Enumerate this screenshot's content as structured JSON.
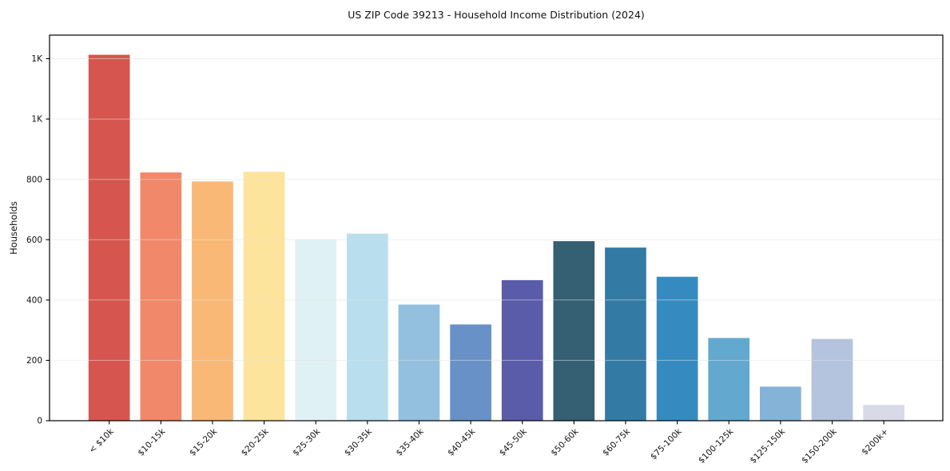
{
  "chart_data": {
    "type": "bar",
    "title": "US ZIP Code 39213 - Household Income Distribution (2024)",
    "xlabel": "",
    "ylabel": "Households",
    "categories": [
      "< $10k",
      "$10-15k",
      "$15-20k",
      "$20-25k",
      "$25-30k",
      "$30-35k",
      "$35-40k",
      "$40-45k",
      "$45-50k",
      "$50-60k",
      "$60-75k",
      "$75-100k",
      "$100-125k",
      "$125-150k",
      "$150-200k",
      "$200k+"
    ],
    "values": [
      1213,
      823,
      793,
      825,
      600,
      620,
      385,
      319,
      466,
      595,
      574,
      477,
      274,
      113,
      271,
      52
    ],
    "bar_colors": [
      "#d6564f",
      "#f2886a",
      "#fab876",
      "#fde49c",
      "#e0f1f5",
      "#b9deee",
      "#92c0de",
      "#6892c7",
      "#5a5caa",
      "#355f73",
      "#337ba4",
      "#358bc0",
      "#62a8cf",
      "#85b3d8",
      "#b4c4de",
      "#d9dae7"
    ],
    "ylim": [
      0,
      1278
    ],
    "yticks": {
      "values": [
        0,
        200,
        400,
        600,
        800,
        1000,
        1200
      ],
      "labels": [
        "0",
        "200",
        "400",
        "600",
        "800",
        "1K",
        "1K"
      ]
    },
    "x_tick_rotation_deg": 45,
    "grid": true,
    "grid_axis": "y",
    "legend": "none",
    "background_color": "#ffffff",
    "spine_color": "#000000",
    "grid_color": "#e2e2e2",
    "tick_text_color": "#111111"
  }
}
